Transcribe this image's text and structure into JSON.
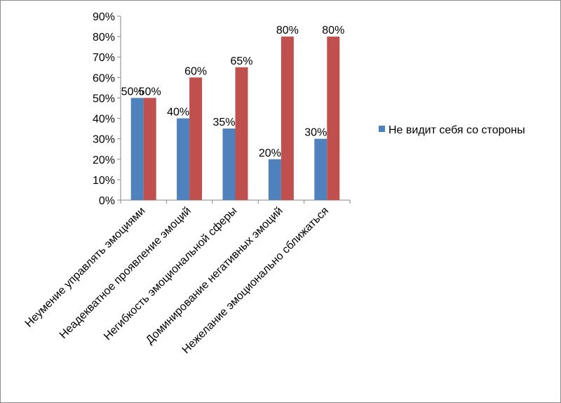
{
  "chart_data": {
    "type": "bar",
    "categories": [
      "Неумение управлять эмоциями",
      "Неадекватное проявление эмоций",
      "Негибкость эмоциональной сферы",
      "Доминирование негативных эмоций",
      "Нежелание эмоционально сближаться"
    ],
    "series": [
      {
        "name": "Не видит себя со стороны",
        "values": [
          50,
          40,
          35,
          20,
          30
        ],
        "color": "#4F81BD"
      },
      {
        "values": [
          50,
          60,
          65,
          80,
          80
        ],
        "color": "#C0504D"
      }
    ],
    "data_labels": [
      [
        "50%",
        "40%",
        "35%",
        "20%",
        "30%"
      ],
      [
        "50%",
        "60%",
        "65%",
        "80%",
        "80%"
      ]
    ],
    "y_ticks": [
      "0%",
      "10%",
      "20%",
      "30%",
      "40%",
      "50%",
      "60%",
      "70%",
      "80%",
      "90%"
    ],
    "ylim": [
      0,
      90
    ],
    "grid": false,
    "legend_position": "right",
    "title": "",
    "xlabel": "",
    "ylabel": ""
  }
}
